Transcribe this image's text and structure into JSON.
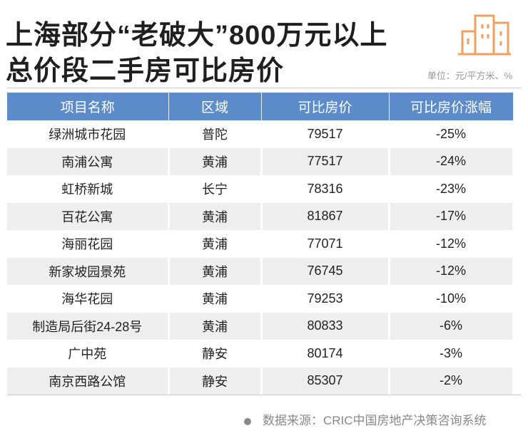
{
  "header": {
    "title_line1": "上海部分“老破大”800万元以上",
    "title_line2": "总价段二手房可比房价",
    "unit": "单位：元/平方米、%",
    "logo_icon": "buildings-icon",
    "accent_color": "#f0a060"
  },
  "chart_data": {
    "type": "table",
    "columns": [
      "项目名称",
      "区域",
      "可比房价",
      "可比房价涨幅"
    ],
    "rows": [
      [
        "绿洲城市花园",
        "普陀",
        "79517",
        "-25%"
      ],
      [
        "南浦公寓",
        "黄浦",
        "77517",
        "-24%"
      ],
      [
        "虹桥新城",
        "长宁",
        "78316",
        "-23%"
      ],
      [
        "百花公寓",
        "黄浦",
        "81867",
        "-17%"
      ],
      [
        "海丽花园",
        "黄浦",
        "77071",
        "-12%"
      ],
      [
        "新家坡园景苑",
        "黄浦",
        "76745",
        "-12%"
      ],
      [
        "海华花园",
        "黄浦",
        "79253",
        "-10%"
      ],
      [
        "制造局后街24-28号",
        "黄浦",
        "80833",
        "-6%"
      ],
      [
        "广中苑",
        "静安",
        "80174",
        "-3%"
      ],
      [
        "南京西路公馆",
        "静安",
        "85307",
        "-2%"
      ]
    ],
    "header_color": "#5d8ccb"
  },
  "footer": {
    "source": "数据来源：CRIC中国房地产决策咨询系统"
  }
}
